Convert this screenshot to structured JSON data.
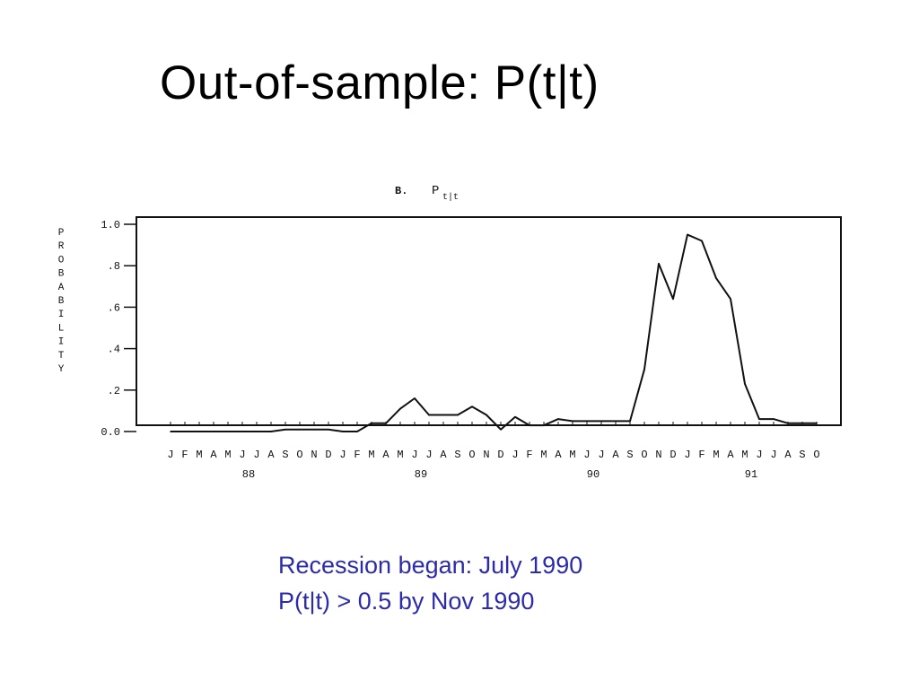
{
  "slide": {
    "title": "Out-of-sample: P(t|t)",
    "note_lines": [
      "Recession began: July 1990",
      "P(t|t) > 0.5 by Nov 1990"
    ]
  },
  "colors": {
    "title": "#000000",
    "note": "#2b2bab",
    "ink": "#111111"
  },
  "chart_data": {
    "type": "line",
    "panel_label": "B.",
    "title_main": "P",
    "title_sub": "t|t",
    "ylabel": "PROBABILITY",
    "ylim": [
      0,
      1
    ],
    "yticks": [
      {
        "v": 0.0,
        "label": "0.0"
      },
      {
        "v": 0.2,
        "label": ".2"
      },
      {
        "v": 0.4,
        "label": ".4"
      },
      {
        "v": 0.6,
        "label": ".6"
      },
      {
        "v": 0.8,
        "label": ".8"
      },
      {
        "v": 1.0,
        "label": "1.0"
      }
    ],
    "xticks": [
      "J",
      "F",
      "M",
      "A",
      "M",
      "J",
      "J",
      "A",
      "S",
      "O",
      "N",
      "D",
      "J",
      "F",
      "M",
      "A",
      "M",
      "J",
      "J",
      "A",
      "S",
      "O",
      "N",
      "D",
      "J",
      "F",
      "M",
      "A",
      "M",
      "J",
      "J",
      "A",
      "S",
      "O",
      "N",
      "D",
      "J",
      "F",
      "M",
      "A",
      "M",
      "J",
      "J",
      "A",
      "S",
      "O"
    ],
    "year_labels": [
      {
        "label": "88",
        "index": 5.5
      },
      {
        "label": "89",
        "index": 17.5
      },
      {
        "label": "90",
        "index": 29.5
      },
      {
        "label": "91",
        "index": 40.5
      }
    ],
    "grid": false,
    "series": [
      {
        "values": [
          0.0,
          0.0,
          0.0,
          0.0,
          0.0,
          0.0,
          0.0,
          0.0,
          0.01,
          0.01,
          0.01,
          0.01,
          0.0,
          0.0,
          0.04,
          0.04,
          0.11,
          0.16,
          0.08,
          0.08,
          0.08,
          0.12,
          0.08,
          0.01,
          0.07,
          0.03,
          0.03,
          0.06,
          0.05,
          0.05,
          0.05,
          0.05,
          0.05,
          0.3,
          0.81,
          0.64,
          0.95,
          0.92,
          0.74,
          0.64,
          0.23,
          0.06,
          0.06,
          0.04,
          0.04,
          0.04
        ]
      }
    ]
  }
}
